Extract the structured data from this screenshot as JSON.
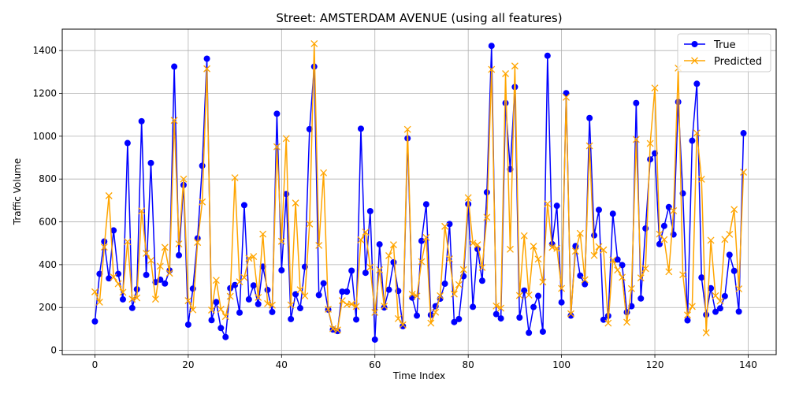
{
  "chart_data": {
    "type": "line",
    "title": "Street: AMSTERDAM AVENUE (using all features)",
    "xlabel": "Time Index",
    "ylabel": "Traffic Volume",
    "xlim": [
      -7,
      146
    ],
    "ylim": [
      -20,
      1500
    ],
    "xticks": [
      0,
      20,
      40,
      60,
      80,
      100,
      120,
      140
    ],
    "yticks": [
      0,
      200,
      400,
      600,
      800,
      1000,
      1200,
      1400
    ],
    "grid": true,
    "legend_position": "top-right",
    "series": [
      {
        "name": "True",
        "color": "#0000ff",
        "marker": "circle",
        "values": [
          135,
          357,
          508,
          336,
          560,
          357,
          238,
          968,
          198,
          285,
          1070,
          352,
          875,
          318,
          330,
          312,
          373,
          1325,
          444,
          772,
          120,
          288,
          523,
          862,
          1362,
          141,
          225,
          104,
          62,
          290,
          305,
          176,
          678,
          238,
          303,
          216,
          391,
          282,
          179,
          1105,
          374,
          730,
          146,
          262,
          197,
          390,
          1033,
          1325,
          258,
          313,
          190,
          97,
          90,
          274,
          274,
          372,
          144,
          1035,
          362,
          650,
          50,
          495,
          200,
          283,
          411,
          277,
          113,
          990,
          246,
          162,
          511,
          682,
          165,
          206,
          241,
          311,
          590,
          132,
          146,
          346,
          683,
          203,
          473,
          325,
          738,
          1422,
          169,
          149,
          1155,
          846,
          1230,
          153,
          279,
          82,
          202,
          254,
          87,
          1376,
          496,
          675,
          224,
          1201,
          162,
          487,
          349,
          309,
          1085,
          537,
          656,
          143,
          161,
          638,
          424,
          398,
          178,
          206,
          1155,
          242,
          569,
          892,
          920,
          496,
          581,
          669,
          541,
          1160,
          733,
          140,
          979,
          1245,
          340,
          166,
          290,
          180,
          196,
          253,
          446,
          371,
          181,
          1014
        ]
      },
      {
        "name": "Predicted",
        "color": "#ffa500",
        "marker": "x",
        "values": [
          273,
          225,
          482,
          722,
          342,
          311,
          271,
          507,
          239,
          245,
          651,
          453,
          420,
          239,
          393,
          481,
          360,
          1074,
          497,
          800,
          232,
          189,
          504,
          693,
          1315,
          188,
          327,
          192,
          158,
          252,
          806,
          320,
          340,
          430,
          438,
          247,
          543,
          218,
          211,
          951,
          509,
          989,
          212,
          688,
          283,
          254,
          590,
          1432,
          490,
          829,
          192,
          101,
          95,
          232,
          214,
          216,
          205,
          516,
          552,
          388,
          177,
          376,
          206,
          442,
          493,
          148,
          119,
          1032,
          262,
          253,
          414,
          527,
          127,
          178,
          255,
          579,
          427,
          263,
          307,
          377,
          713,
          500,
          493,
          387,
          621,
          1312,
          207,
          197,
          1292,
          472,
          1328,
          256,
          535,
          258,
          486,
          426,
          319,
          684,
          481,
          476,
          289,
          1182,
          171,
          463,
          546,
          330,
          955,
          443,
          484,
          469,
          127,
          422,
          375,
          341,
          131,
          288,
          985,
          338,
          382,
          966,
          1225,
          543,
          517,
          367,
          652,
          1318,
          353,
          165,
          205,
          1015,
          799,
          82,
          514,
          255,
          230,
          518,
          542,
          658,
          287,
          832
        ]
      }
    ]
  }
}
